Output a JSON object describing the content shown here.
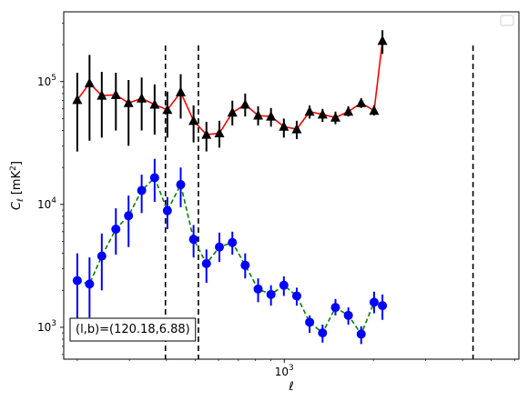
{
  "chart_data": {
    "type": "scatter",
    "xscale": "log",
    "yscale": "log",
    "xlim": [
      180,
      6200
    ],
    "ylim": [
      550,
      370000
    ],
    "xlabel": "ℓ",
    "ylabel_main": "C",
    "ylabel_sub": "ℓ",
    "ylabel_unit": "[mK",
    "ylabel_unit_sup": "2",
    "ylabel_unit_close": "]",
    "x_tick_labels": [
      {
        "value": 1000,
        "base": "10",
        "exp": "3"
      }
    ],
    "y_tick_labels": [
      {
        "value": 1000,
        "base": "10",
        "exp": "3"
      },
      {
        "value": 10000,
        "base": "10",
        "exp": "4"
      },
      {
        "value": 100000,
        "base": "10",
        "exp": "5"
      }
    ],
    "annotation": "(l,b)=(120.18,6.88)",
    "legend": {
      "entries": [],
      "placement": "top-right"
    },
    "vlines": [
      397,
      513,
      4340
    ],
    "series": [
      {
        "color": "#ff0000",
        "marker_color": "#000000",
        "marker": "triangle",
        "linestyle": "solid",
        "points": [
          {
            "x": 200,
            "y": 71000,
            "lo": 27000,
            "hi": 118000
          },
          {
            "x": 220,
            "y": 97000,
            "lo": 33000,
            "hi": 165000
          },
          {
            "x": 242,
            "y": 77000,
            "lo": 35000,
            "hi": 120000
          },
          {
            "x": 270,
            "y": 78000,
            "lo": 40000,
            "hi": 118000
          },
          {
            "x": 298,
            "y": 67000,
            "lo": 30000,
            "hi": 103000
          },
          {
            "x": 330,
            "y": 73000,
            "lo": 40000,
            "hi": 108000
          },
          {
            "x": 365,
            "y": 65000,
            "lo": 37000,
            "hi": 95000
          },
          {
            "x": 403,
            "y": 59000,
            "lo": 35000,
            "hi": 83000
          },
          {
            "x": 447,
            "y": 82000,
            "lo": 50000,
            "hi": 115000
          },
          {
            "x": 494,
            "y": 48000,
            "lo": 32000,
            "hi": 64000
          },
          {
            "x": 546,
            "y": 37000,
            "lo": 27000,
            "hi": 47000
          },
          {
            "x": 604,
            "y": 38000,
            "lo": 29000,
            "hi": 48000
          },
          {
            "x": 668,
            "y": 56000,
            "lo": 44000,
            "hi": 70000
          },
          {
            "x": 738,
            "y": 65000,
            "lo": 52000,
            "hi": 80000
          },
          {
            "x": 816,
            "y": 53000,
            "lo": 44000,
            "hi": 63000
          },
          {
            "x": 902,
            "y": 52000,
            "lo": 43000,
            "hi": 61000
          },
          {
            "x": 997,
            "y": 43000,
            "lo": 35000,
            "hi": 50000
          },
          {
            "x": 1102,
            "y": 41000,
            "lo": 34000,
            "hi": 48000
          },
          {
            "x": 1218,
            "y": 57000,
            "lo": 50000,
            "hi": 64000
          },
          {
            "x": 1347,
            "y": 54000,
            "lo": 47000,
            "hi": 60000
          },
          {
            "x": 1489,
            "y": 51000,
            "lo": 45000,
            "hi": 57000
          },
          {
            "x": 1646,
            "y": 57000,
            "lo": 52000,
            "hi": 63000
          },
          {
            "x": 1819,
            "y": 67000,
            "lo": 61000,
            "hi": 73000
          },
          {
            "x": 2011,
            "y": 58000,
            "lo": 53000,
            "hi": 64000
          },
          {
            "x": 2146,
            "y": 215000,
            "lo": 168000,
            "hi": 262000
          }
        ]
      },
      {
        "color": "#008000",
        "marker_color": "#0000ff",
        "marker": "circle",
        "linestyle": "dashed",
        "points": [
          {
            "x": 200,
            "y": 2400,
            "lo": 1000,
            "hi": 4000
          },
          {
            "x": 220,
            "y": 2250,
            "lo": 1200,
            "hi": 3700
          },
          {
            "x": 242,
            "y": 3800,
            "lo": 2000,
            "hi": 5800
          },
          {
            "x": 270,
            "y": 6300,
            "lo": 3900,
            "hi": 9300
          },
          {
            "x": 298,
            "y": 8100,
            "lo": 4500,
            "hi": 11800
          },
          {
            "x": 330,
            "y": 13000,
            "lo": 8500,
            "hi": 17500
          },
          {
            "x": 365,
            "y": 16500,
            "lo": 10500,
            "hi": 23500
          },
          {
            "x": 403,
            "y": 8900,
            "lo": 6300,
            "hi": 11500
          },
          {
            "x": 447,
            "y": 14500,
            "lo": 9500,
            "hi": 20000
          },
          {
            "x": 494,
            "y": 5200,
            "lo": 3700,
            "hi": 6800
          },
          {
            "x": 546,
            "y": 3300,
            "lo": 2300,
            "hi": 4300
          },
          {
            "x": 604,
            "y": 4500,
            "lo": 3400,
            "hi": 5900
          },
          {
            "x": 668,
            "y": 4900,
            "lo": 3900,
            "hi": 6000
          },
          {
            "x": 738,
            "y": 3200,
            "lo": 2500,
            "hi": 4000
          },
          {
            "x": 816,
            "y": 2050,
            "lo": 1600,
            "hi": 2500
          },
          {
            "x": 902,
            "y": 1850,
            "lo": 1500,
            "hi": 2200
          },
          {
            "x": 997,
            "y": 2200,
            "lo": 1800,
            "hi": 2600
          },
          {
            "x": 1102,
            "y": 1800,
            "lo": 1500,
            "hi": 2100
          },
          {
            "x": 1218,
            "y": 1100,
            "lo": 900,
            "hi": 1250
          },
          {
            "x": 1347,
            "y": 900,
            "lo": 750,
            "hi": 1050
          },
          {
            "x": 1489,
            "y": 1450,
            "lo": 1250,
            "hi": 1700
          },
          {
            "x": 1646,
            "y": 1250,
            "lo": 1050,
            "hi": 1450
          },
          {
            "x": 1819,
            "y": 880,
            "lo": 730,
            "hi": 1020
          },
          {
            "x": 2011,
            "y": 1600,
            "lo": 1300,
            "hi": 1950
          },
          {
            "x": 2146,
            "y": 1500,
            "lo": 1150,
            "hi": 1850
          }
        ]
      }
    ]
  }
}
